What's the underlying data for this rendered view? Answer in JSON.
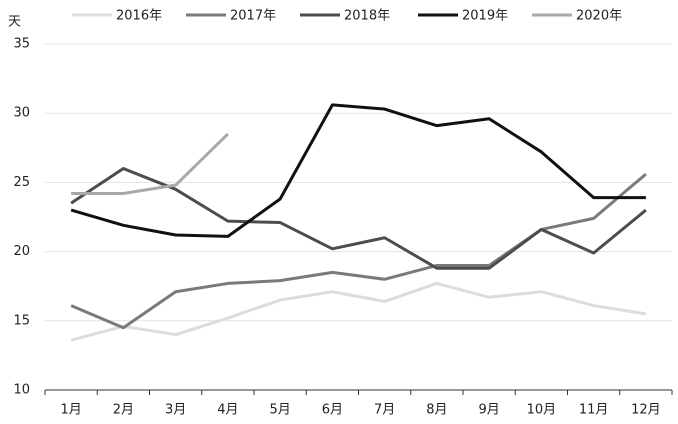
{
  "chart_data": {
    "type": "line",
    "y_label": "天",
    "categories": [
      "1月",
      "2月",
      "3月",
      "4月",
      "5月",
      "6月",
      "7月",
      "8月",
      "9月",
      "10月",
      "11月",
      "12月"
    ],
    "series": [
      {
        "name": "2016年",
        "color": "#dcdcdc",
        "values": [
          13.6,
          14.6,
          14.0,
          15.2,
          16.5,
          17.1,
          16.4,
          17.7,
          16.7,
          17.1,
          16.1,
          15.5
        ]
      },
      {
        "name": "2017年",
        "color": "#7a7a7a",
        "values": [
          16.1,
          14.5,
          17.1,
          17.7,
          17.9,
          18.5,
          18.0,
          19.0,
          19.0,
          21.6,
          22.4,
          25.6
        ]
      },
      {
        "name": "2018年",
        "color": "#4d4d4d",
        "values": [
          23.5,
          26.0,
          24.5,
          22.2,
          22.1,
          20.2,
          21.0,
          18.8,
          18.8,
          21.6,
          19.9,
          23.0
        ]
      },
      {
        "name": "2019年",
        "color": "#111111",
        "values": [
          23.0,
          21.9,
          21.2,
          21.1,
          23.8,
          30.6,
          30.3,
          29.1,
          29.6,
          27.2,
          23.9,
          23.9
        ]
      },
      {
        "name": "2020年",
        "color": "#a8a8a8",
        "values": [
          24.2,
          24.2,
          24.8,
          28.5,
          null,
          null,
          null,
          null,
          null,
          null,
          null,
          null
        ]
      }
    ],
    "ylim": [
      10,
      35
    ],
    "yticks": [
      10,
      15,
      20,
      25,
      30,
      35
    ],
    "grid": true,
    "legend": "top"
  }
}
